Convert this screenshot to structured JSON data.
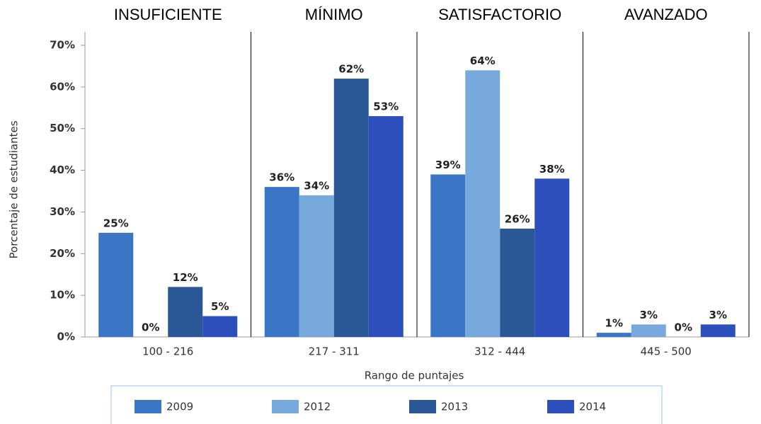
{
  "chart_data": {
    "type": "bar",
    "group_labels": [
      "INSUFICIENTE",
      "MÍNIMO",
      "SATISFACTORIO",
      "AVANZADO"
    ],
    "categories": [
      "100 - 216",
      "217 - 311",
      "312 - 444",
      "445 - 500"
    ],
    "x_label": "Rango de puntajes",
    "y_label": "Porcentaje de estudiantes",
    "ylim": [
      0,
      70
    ],
    "yticks": [
      {
        "value": 0,
        "label": "0%"
      },
      {
        "value": 10,
        "label": "10%"
      },
      {
        "value": 20,
        "label": "20%"
      },
      {
        "value": 30,
        "label": "30%"
      },
      {
        "value": 40,
        "label": "40%"
      },
      {
        "value": 50,
        "label": "50%"
      },
      {
        "value": 60,
        "label": "60%"
      },
      {
        "value": 70,
        "label": "70%"
      }
    ],
    "series": [
      {
        "name": "2009",
        "color": "#3b76c5",
        "values": [
          25,
          36,
          39,
          1
        ],
        "value_labels": [
          "25%",
          "36%",
          "39%",
          "1%"
        ]
      },
      {
        "name": "2012",
        "color": "#77a9dc",
        "values": [
          0,
          34,
          64,
          3
        ],
        "value_labels": [
          "0%",
          "34%",
          "64%",
          "3%"
        ]
      },
      {
        "name": "2013",
        "color": "#2a5896",
        "values": [
          12,
          62,
          26,
          0
        ],
        "value_labels": [
          "12%",
          "62%",
          "26%",
          "0%"
        ]
      },
      {
        "name": "2014",
        "color": "#2c4fbb",
        "values": [
          5,
          53,
          38,
          3
        ],
        "value_labels": [
          "5%",
          "53%",
          "38%",
          "3%"
        ]
      }
    ]
  }
}
